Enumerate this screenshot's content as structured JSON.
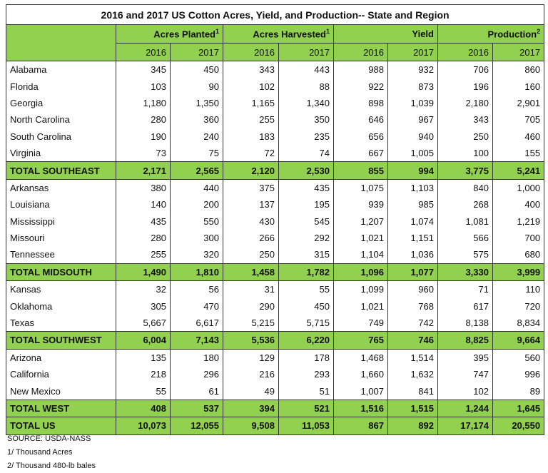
{
  "title": "2016 and 2017 US Cotton Acres, Yield, and Production-- State and Region",
  "table": {
    "groups": [
      {
        "label": "Acres Planted",
        "note": "1"
      },
      {
        "label": "Acres Harvested",
        "note": "1"
      },
      {
        "label": "Yield"
      },
      {
        "label": "Production",
        "note": "2"
      }
    ],
    "years": [
      "2016",
      "2017",
      "2016",
      "2017",
      "2016",
      "2017",
      "2016",
      "2017"
    ],
    "sections": [
      {
        "rows": [
          {
            "name": "Alabama",
            "values": [
              "345",
              "450",
              "343",
              "443",
              "988",
              "932",
              "706",
              "860"
            ]
          },
          {
            "name": "Florida",
            "values": [
              "103",
              "90",
              "102",
              "88",
              "922",
              "873",
              "196",
              "160"
            ]
          },
          {
            "name": "Georgia",
            "values": [
              "1,180",
              "1,350",
              "1,165",
              "1,340",
              "898",
              "1,039",
              "2,180",
              "2,901"
            ]
          },
          {
            "name": "North Carolina",
            "values": [
              "280",
              "360",
              "255",
              "350",
              "646",
              "967",
              "343",
              "705"
            ]
          },
          {
            "name": "South Carolina",
            "values": [
              "190",
              "240",
              "183",
              "235",
              "656",
              "940",
              "250",
              "460"
            ]
          },
          {
            "name": "Virginia",
            "values": [
              "73",
              "75",
              "72",
              "74",
              "667",
              "1,005",
              "100",
              "155"
            ]
          }
        ],
        "total": {
          "name": "TOTAL SOUTHEAST",
          "values": [
            "2,171",
            "2,565",
            "2,120",
            "2,530",
            "855",
            "994",
            "3,775",
            "5,241"
          ]
        }
      },
      {
        "rows": [
          {
            "name": "Arkansas",
            "values": [
              "380",
              "440",
              "375",
              "435",
              "1,075",
              "1,103",
              "840",
              "1,000"
            ]
          },
          {
            "name": "Louisiana",
            "values": [
              "140",
              "200",
              "137",
              "195",
              "939",
              "985",
              "268",
              "400"
            ]
          },
          {
            "name": "Mississippi",
            "values": [
              "435",
              "550",
              "430",
              "545",
              "1,207",
              "1,074",
              "1,081",
              "1,219"
            ]
          },
          {
            "name": "Missouri",
            "values": [
              "280",
              "300",
              "266",
              "292",
              "1,021",
              "1,151",
              "566",
              "700"
            ]
          },
          {
            "name": "Tennessee",
            "values": [
              "255",
              "320",
              "250",
              "315",
              "1,104",
              "1,036",
              "575",
              "680"
            ]
          }
        ],
        "total": {
          "name": "TOTAL MIDSOUTH",
          "values": [
            "1,490",
            "1,810",
            "1,458",
            "1,782",
            "1,096",
            "1,077",
            "3,330",
            "3,999"
          ]
        }
      },
      {
        "rows": [
          {
            "name": "Kansas",
            "values": [
              "32",
              "56",
              "31",
              "55",
              "1,099",
              "960",
              "71",
              "110"
            ]
          },
          {
            "name": "Oklahoma",
            "values": [
              "305",
              "470",
              "290",
              "450",
              "1,021",
              "768",
              "617",
              "720"
            ]
          },
          {
            "name": "Texas",
            "values": [
              "5,667",
              "6,617",
              "5,215",
              "5,715",
              "749",
              "742",
              "8,138",
              "8,834"
            ]
          }
        ],
        "total": {
          "name": "TOTAL SOUTHWEST",
          "values": [
            "6,004",
            "7,143",
            "5,536",
            "6,220",
            "765",
            "746",
            "8,825",
            "9,664"
          ]
        }
      },
      {
        "rows": [
          {
            "name": "Arizona",
            "values": [
              "135",
              "180",
              "129",
              "178",
              "1,468",
              "1,514",
              "395",
              "560"
            ]
          },
          {
            "name": "California",
            "values": [
              "218",
              "296",
              "216",
              "293",
              "1,660",
              "1,632",
              "747",
              "996"
            ]
          },
          {
            "name": "New Mexico",
            "values": [
              "55",
              "61",
              "49",
              "51",
              "1,007",
              "841",
              "102",
              "89"
            ]
          }
        ],
        "total": {
          "name": "TOTAL WEST",
          "values": [
            "408",
            "537",
            "394",
            "521",
            "1,516",
            "1,515",
            "1,244",
            "1,645"
          ]
        }
      }
    ],
    "grand_total": {
      "name": "TOTAL US",
      "values": [
        "10,073",
        "12,055",
        "9,508",
        "11,053",
        "867",
        "892",
        "17,174",
        "20,550"
      ]
    }
  },
  "footnotes": [
    "SOURCE: USDA-NASS",
    "1/ Thousand Acres",
    "2/ Thousand 480-lb bales"
  ]
}
